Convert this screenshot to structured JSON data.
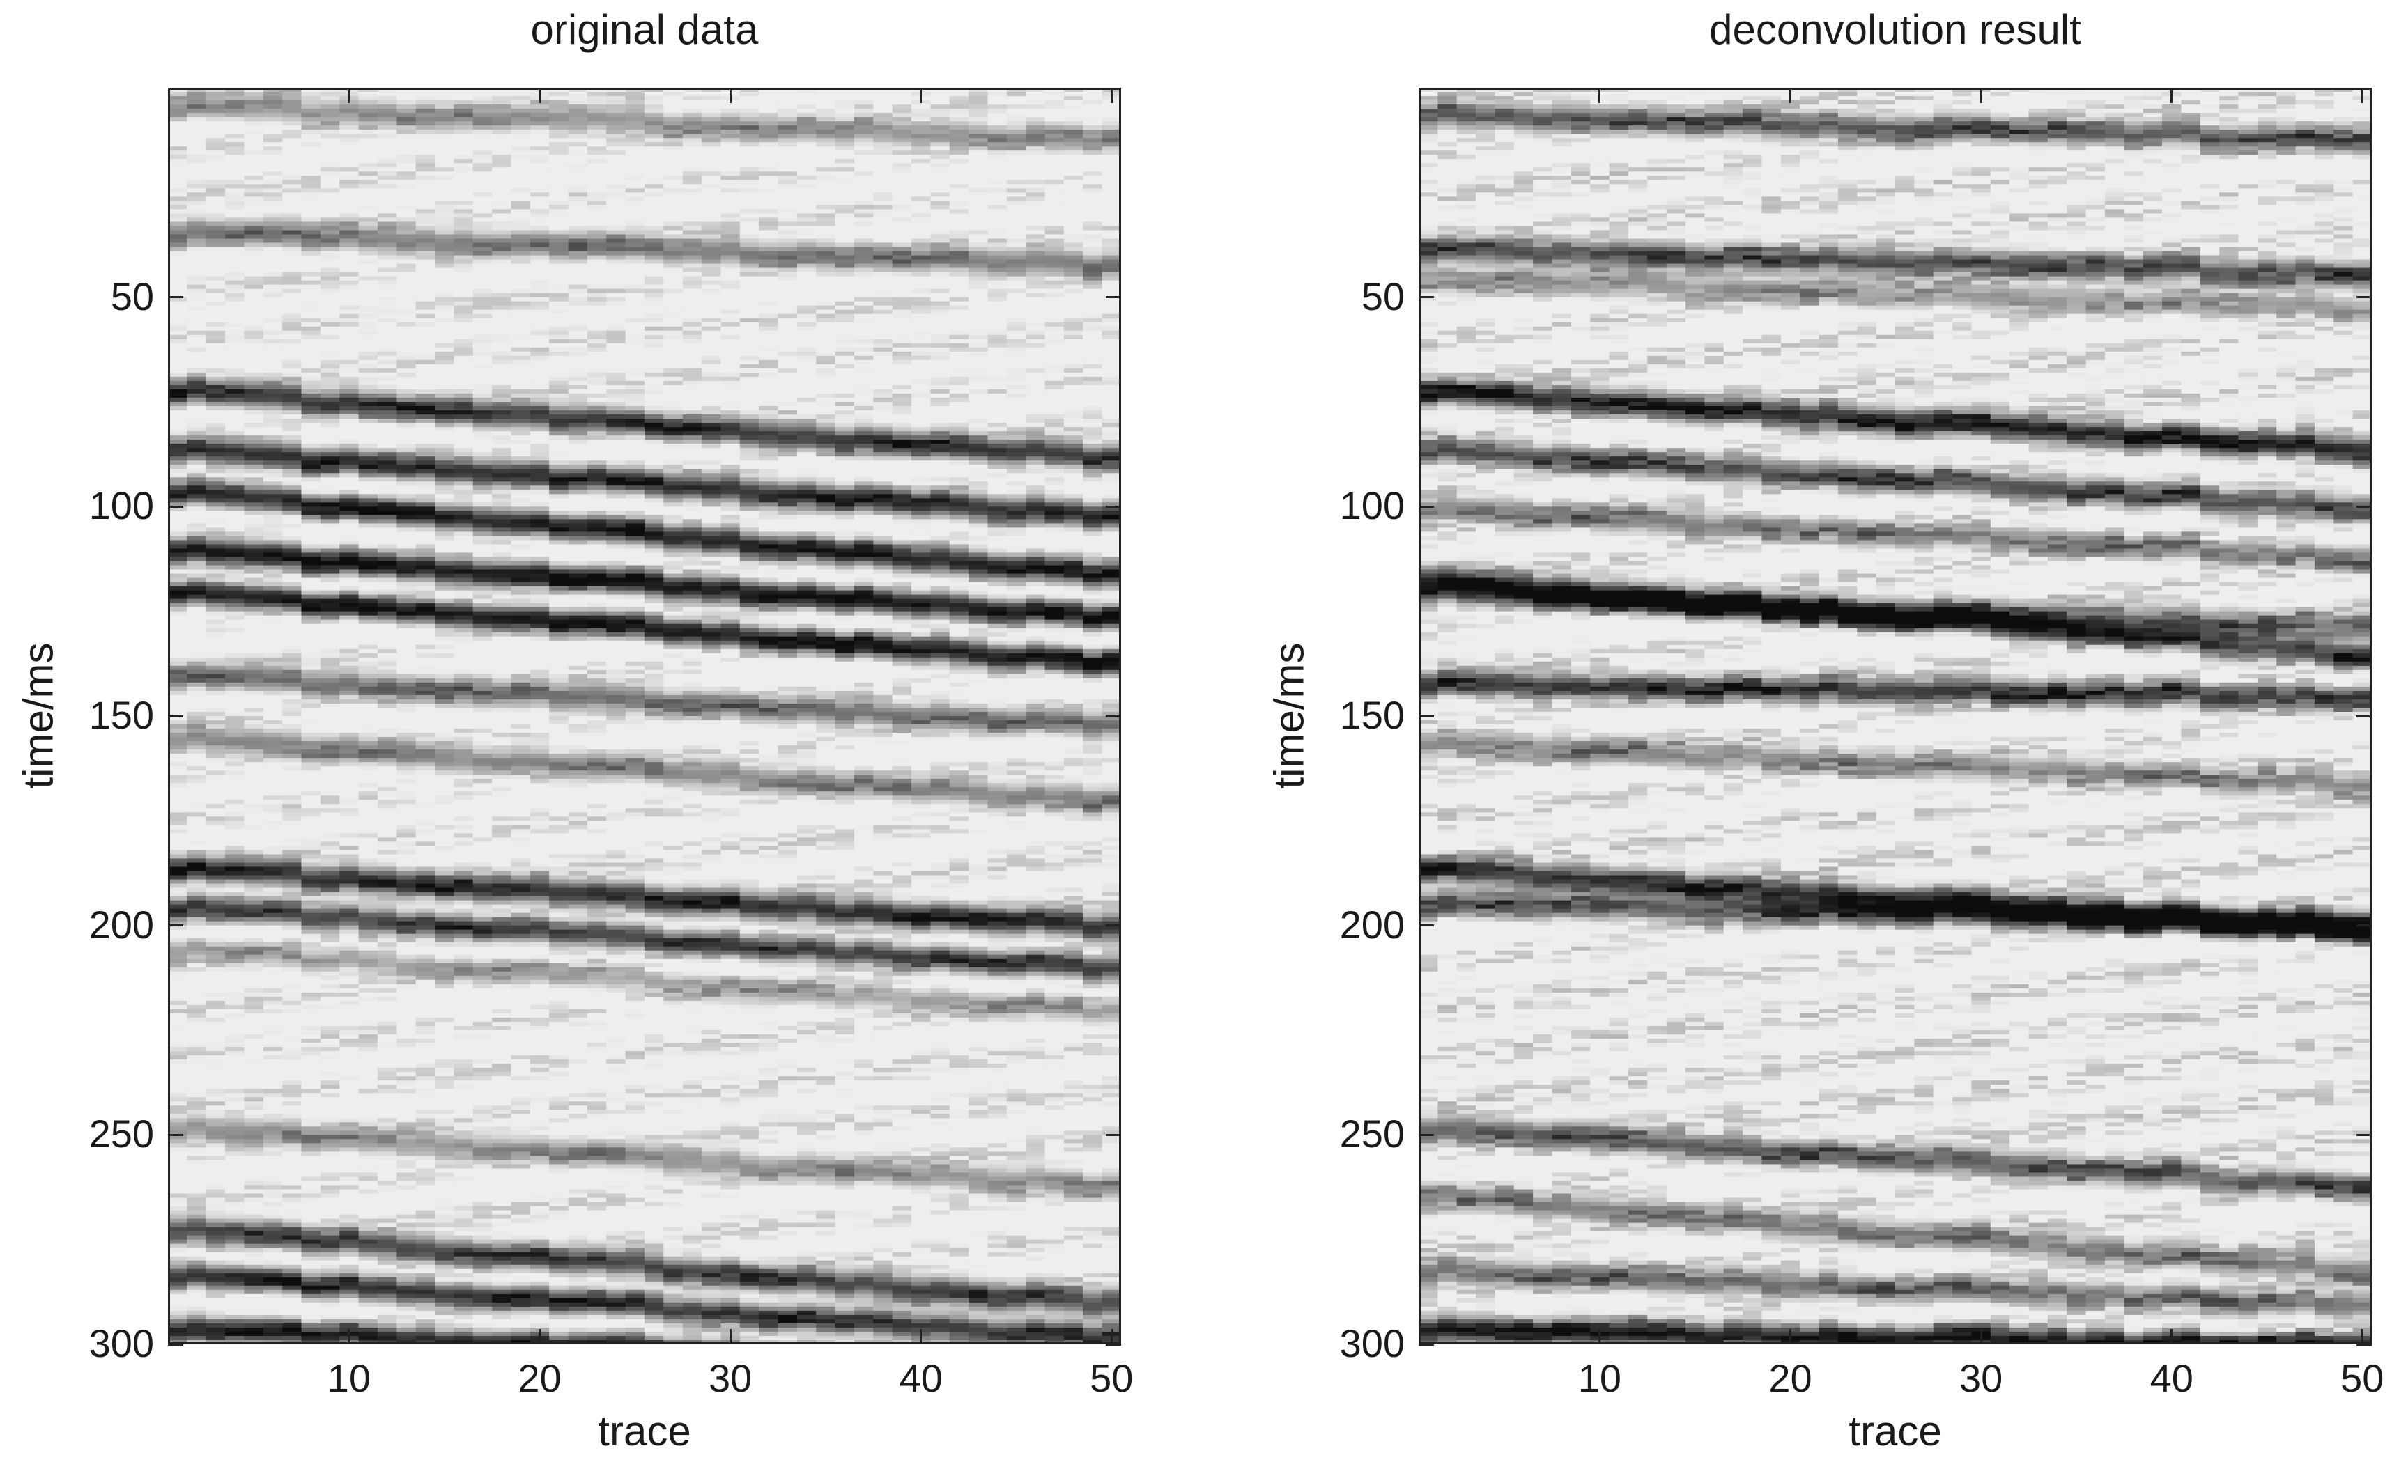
{
  "chart_data": [
    {
      "type": "heatmap",
      "title": "original data",
      "xlabel": "trace",
      "ylabel": "time/ms",
      "xlim": [
        0.5,
        50.5
      ],
      "ylim": [
        0,
        300
      ],
      "y_reversed": true,
      "colormap": "gray",
      "xticks": [
        10,
        20,
        30,
        40,
        50
      ],
      "yticks": [
        50,
        100,
        150,
        200,
        250,
        300
      ],
      "reflectors": [
        {
          "t0": 4,
          "t50": 12,
          "strength": 0.45
        },
        {
          "t0": 34,
          "t50": 42,
          "strength": 0.55
        },
        {
          "t0": 72,
          "t50": 88,
          "strength": 0.85
        },
        {
          "t0": 86,
          "t50": 102,
          "strength": 0.9
        },
        {
          "t0": 96,
          "t50": 116,
          "strength": 0.95
        },
        {
          "t0": 110,
          "t50": 126,
          "strength": 1.0
        },
        {
          "t0": 120,
          "t50": 137,
          "strength": 1.0
        },
        {
          "t0": 140,
          "t50": 152,
          "strength": 0.6
        },
        {
          "t0": 155,
          "t50": 170,
          "strength": 0.5
        },
        {
          "t0": 186,
          "t50": 200,
          "strength": 0.9
        },
        {
          "t0": 195,
          "t50": 210,
          "strength": 0.85
        },
        {
          "t0": 205,
          "t50": 220,
          "strength": 0.4
        },
        {
          "t0": 248,
          "t50": 262,
          "strength": 0.45
        },
        {
          "t0": 272,
          "t50": 290,
          "strength": 0.8
        },
        {
          "t0": 283,
          "t50": 298,
          "strength": 0.9
        },
        {
          "t0": 296,
          "t50": 305,
          "strength": 0.95
        }
      ]
    },
    {
      "type": "heatmap",
      "title": "deconvolution result",
      "xlabel": "trace",
      "ylabel": "time/ms",
      "xlim": [
        0.5,
        50.5
      ],
      "ylim": [
        0,
        300
      ],
      "y_reversed": true,
      "colormap": "gray",
      "xticks": [
        10,
        20,
        30,
        40,
        50
      ],
      "yticks": [
        50,
        100,
        150,
        200,
        250,
        300
      ],
      "reflectors": [
        {
          "t0": 6,
          "t50": 12,
          "strength": 0.7
        },
        {
          "t0": 38,
          "t50": 44,
          "strength": 0.75
        },
        {
          "t0": 45,
          "t50": 52,
          "strength": 0.5
        },
        {
          "t0": 72,
          "t50": 86,
          "strength": 0.95
        },
        {
          "t0": 86,
          "t50": 100,
          "strength": 0.75
        },
        {
          "t0": 100,
          "t50": 112,
          "strength": 0.55
        },
        {
          "t0": 117,
          "t50": 135,
          "strength": 0.9
        },
        {
          "t0": 121,
          "t50": 128,
          "strength": 0.6
        },
        {
          "t0": 142,
          "t50": 145,
          "strength": 0.85
        },
        {
          "t0": 156,
          "t50": 166,
          "strength": 0.5
        },
        {
          "t0": 186,
          "t50": 200,
          "strength": 0.85
        },
        {
          "t0": 194,
          "t50": 200,
          "strength": 0.8
        },
        {
          "t0": 248,
          "t50": 262,
          "strength": 0.7
        },
        {
          "t0": 264,
          "t50": 282,
          "strength": 0.55
        },
        {
          "t0": 282,
          "t50": 290,
          "strength": 0.6
        },
        {
          "t0": 296,
          "t50": 300,
          "strength": 1.0
        }
      ]
    }
  ]
}
